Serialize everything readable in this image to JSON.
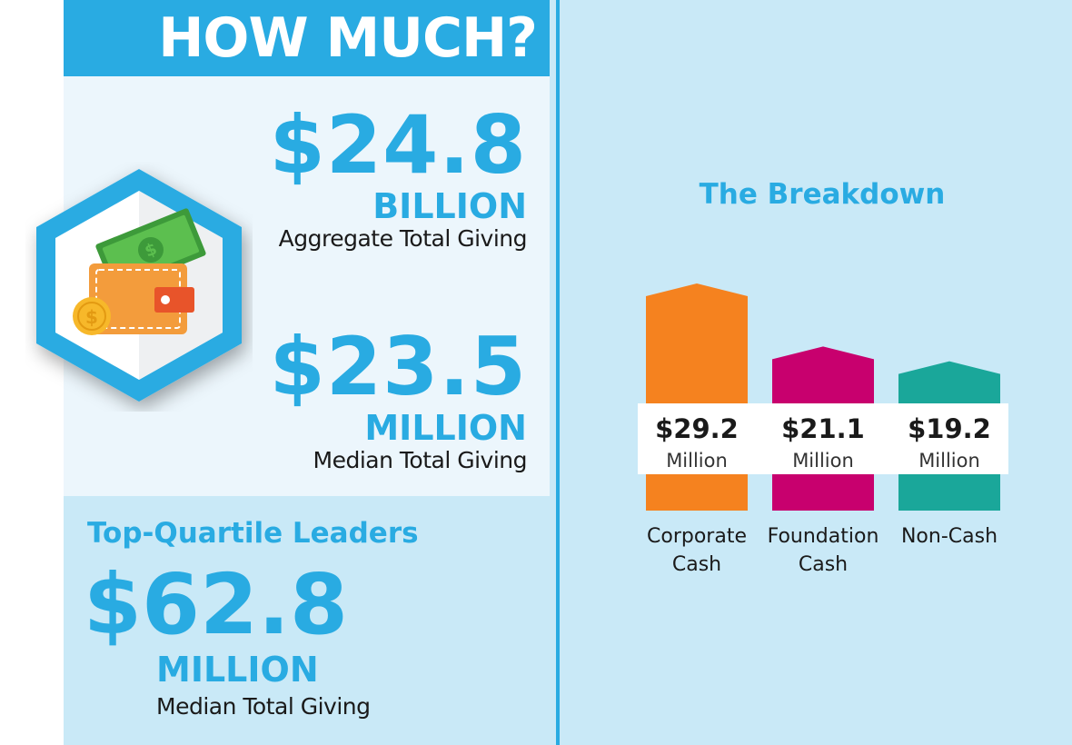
{
  "header": {
    "title": "HOW MUCH?"
  },
  "aggregate": {
    "value": "$24.8",
    "unit": "BILLION",
    "label": "Aggregate Total Giving"
  },
  "median": {
    "value": "$23.5",
    "unit": "MILLION",
    "label": "Median Total Giving"
  },
  "top_quartile": {
    "title": "Top-Quartile Leaders",
    "value": "$62.8",
    "unit": "MILLION",
    "label": "Median Total Giving"
  },
  "icon": {
    "name": "wallet-money-icon",
    "colors": {
      "frame": "#29abe2",
      "wallet": "#f39c3c",
      "bill": "#5cbf4f",
      "coin": "#f7b82a"
    }
  },
  "chart_data": {
    "type": "bar",
    "title": "The Breakdown",
    "categories": [
      [
        "Corporate",
        "Cash"
      ],
      [
        "Foundation",
        "Cash"
      ],
      [
        "Non-Cash"
      ]
    ],
    "values": [
      29.2,
      21.1,
      19.2
    ],
    "value_labels": [
      "$29.2",
      "$21.1",
      "$19.2"
    ],
    "unit": "Million",
    "colors": [
      "#f5821f",
      "#c8006e",
      "#1aa79a"
    ]
  }
}
